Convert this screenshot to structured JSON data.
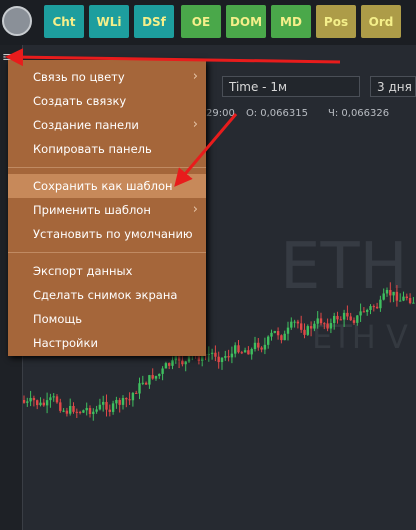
{
  "toolbar": {
    "buttons": [
      {
        "label": "Cht",
        "color": "#1d9e9e"
      },
      {
        "label": "WLi",
        "color": "#1d9e9e"
      },
      {
        "label": "DSf",
        "color": "#1d9e9e"
      },
      {
        "label": "OE",
        "color": "#4aa84a"
      },
      {
        "label": "DOM",
        "color": "#4aa84a"
      },
      {
        "label": "MD",
        "color": "#4aa84a"
      },
      {
        "label": "Pos",
        "color": "#ad9c48"
      },
      {
        "label": "Ord",
        "color": "#ad9c48"
      }
    ]
  },
  "chart_header": {
    "timeframe": "Time - 1м",
    "range": "3 дня",
    "time": "29:00",
    "open": "O: 0,066315",
    "close": "Ч: 0,066326"
  },
  "watermark": {
    "symbol": "ETH",
    "sub": "ETH V"
  },
  "menu": {
    "highlighted": "Сохранить как шаблон",
    "groups": [
      [
        {
          "label": "Связь по цвету",
          "submenu": true
        },
        {
          "label": "Создать связку",
          "submenu": false
        },
        {
          "label": "Создание панели",
          "submenu": true
        },
        {
          "label": "Копировать панель",
          "submenu": false
        }
      ],
      [
        {
          "label": "Сохранить как шаблон",
          "submenu": false
        },
        {
          "label": "Применить шаблон",
          "submenu": true
        },
        {
          "label": "Установить по умолчанию",
          "submenu": false
        }
      ],
      [
        {
          "label": "Экспорт данных",
          "submenu": false
        },
        {
          "label": "Сделать снимок экрана",
          "submenu": false
        },
        {
          "label": "Помощь",
          "submenu": false
        },
        {
          "label": "Настройки",
          "submenu": false
        }
      ]
    ]
  }
}
